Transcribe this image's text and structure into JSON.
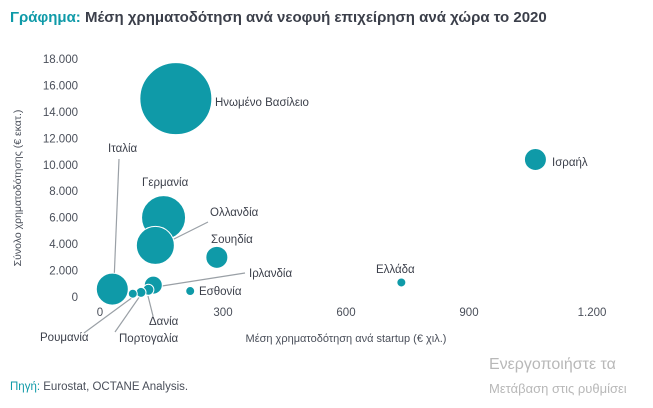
{
  "title": {
    "prefix": "Γράφημα:",
    "text": "Μέση χρηματοδότηση ανά νεοφυή επιχείρηση ανά χώρα το 2020"
  },
  "source": {
    "prefix": "Πηγή:",
    "text": "Eurostat, OCTANE Analysis."
  },
  "watermark": {
    "line1": "Ενεργοποιήστε τα",
    "line2": "Μετάβαση στις ρυθμίσει"
  },
  "colors": {
    "bubble": "#0f9aa8",
    "bubble_stroke": "#ffffff",
    "axis_text": "#4a4f5a",
    "label_text": "#3b3f4a",
    "leader": "#9aa0a6",
    "grid": "#e4e4e4"
  },
  "chart_data": {
    "type": "scatter",
    "bubble": true,
    "xlabel": "Μέση χρηματοδότηση ανά startup (€ χιλ.)",
    "ylabel": "Σύνολο χρηματοδότησης (€ εκατ.)",
    "xlim": [
      0,
      1200
    ],
    "ylim": [
      0,
      18000
    ],
    "x_ticks": [
      0,
      300,
      600,
      900,
      1200
    ],
    "x_tick_labels": [
      "0",
      "300",
      "600",
      "900",
      "1.200"
    ],
    "y_ticks": [
      0,
      2000,
      4000,
      6000,
      8000,
      10000,
      12000,
      14000,
      16000,
      18000
    ],
    "y_tick_labels": [
      "0",
      "2.000",
      "4.000",
      "6.000",
      "8.000",
      "10.000",
      "12.000",
      "14.000",
      "16.000",
      "18.000"
    ],
    "grid": false,
    "points": [
      {
        "label": "Ηνωμένο Βασίλειο",
        "x": 185,
        "y": 15000,
        "size": 36
      },
      {
        "label": "Ισραήλ",
        "x": 1062,
        "y": 10400,
        "size": 11
      },
      {
        "label": "Γερμανία",
        "x": 155,
        "y": 6000,
        "size": 22
      },
      {
        "label": "Ολλανδία",
        "x": 135,
        "y": 3900,
        "size": 19
      },
      {
        "label": "Σουηδία",
        "x": 285,
        "y": 3000,
        "size": 11
      },
      {
        "label": "Ιταλία",
        "x": 30,
        "y": 600,
        "size": 16
      },
      {
        "label": "Ιρλανδία",
        "x": 130,
        "y": 900,
        "size": 9
      },
      {
        "label": "Εσθονία",
        "x": 220,
        "y": 450,
        "size": 4.5
      },
      {
        "label": "Ελλάδα",
        "x": 735,
        "y": 1100,
        "size": 4.5
      },
      {
        "label": "Ρουμανία",
        "x": 80,
        "y": 250,
        "size": 4.5
      },
      {
        "label": "Πορτογαλία",
        "x": 100,
        "y": 350,
        "size": 5
      },
      {
        "label": "Δανία",
        "x": 118,
        "y": 550,
        "size": 5.5
      }
    ]
  }
}
